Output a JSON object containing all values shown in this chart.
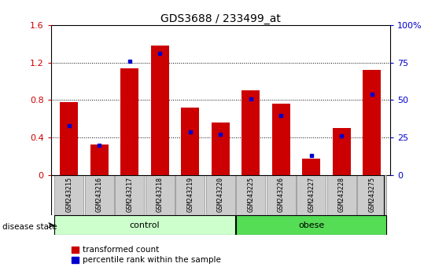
{
  "title": "GDS3688 / 233499_at",
  "samples": [
    "GSM243215",
    "GSM243216",
    "GSM243217",
    "GSM243218",
    "GSM243219",
    "GSM243220",
    "GSM243225",
    "GSM243226",
    "GSM243227",
    "GSM243228",
    "GSM243275"
  ],
  "transformed_count": [
    0.78,
    0.33,
    1.14,
    1.38,
    0.72,
    0.56,
    0.9,
    0.76,
    0.18,
    0.5,
    1.12
  ],
  "percentile_rank_pct": [
    33,
    20,
    76,
    81,
    29,
    27,
    51,
    40,
    13,
    26,
    54
  ],
  "groups": {
    "control": [
      0,
      1,
      2,
      3,
      4,
      5
    ],
    "obese": [
      6,
      7,
      8,
      9,
      10
    ]
  },
  "left_ylim": [
    0,
    1.6
  ],
  "right_ylim": [
    0,
    100
  ],
  "left_yticks": [
    0,
    0.4,
    0.8,
    1.2,
    1.6
  ],
  "right_yticks": [
    0,
    25,
    50,
    75,
    100
  ],
  "bar_color": "#cc0000",
  "dot_color": "#0000cc",
  "control_color": "#ccffcc",
  "obese_color": "#55dd55",
  "tick_label_bg": "#cccccc",
  "title_fontsize": 10,
  "axis_fontsize": 8,
  "label_fontsize": 6,
  "legend_fontsize": 7.5,
  "bar_width": 0.6
}
